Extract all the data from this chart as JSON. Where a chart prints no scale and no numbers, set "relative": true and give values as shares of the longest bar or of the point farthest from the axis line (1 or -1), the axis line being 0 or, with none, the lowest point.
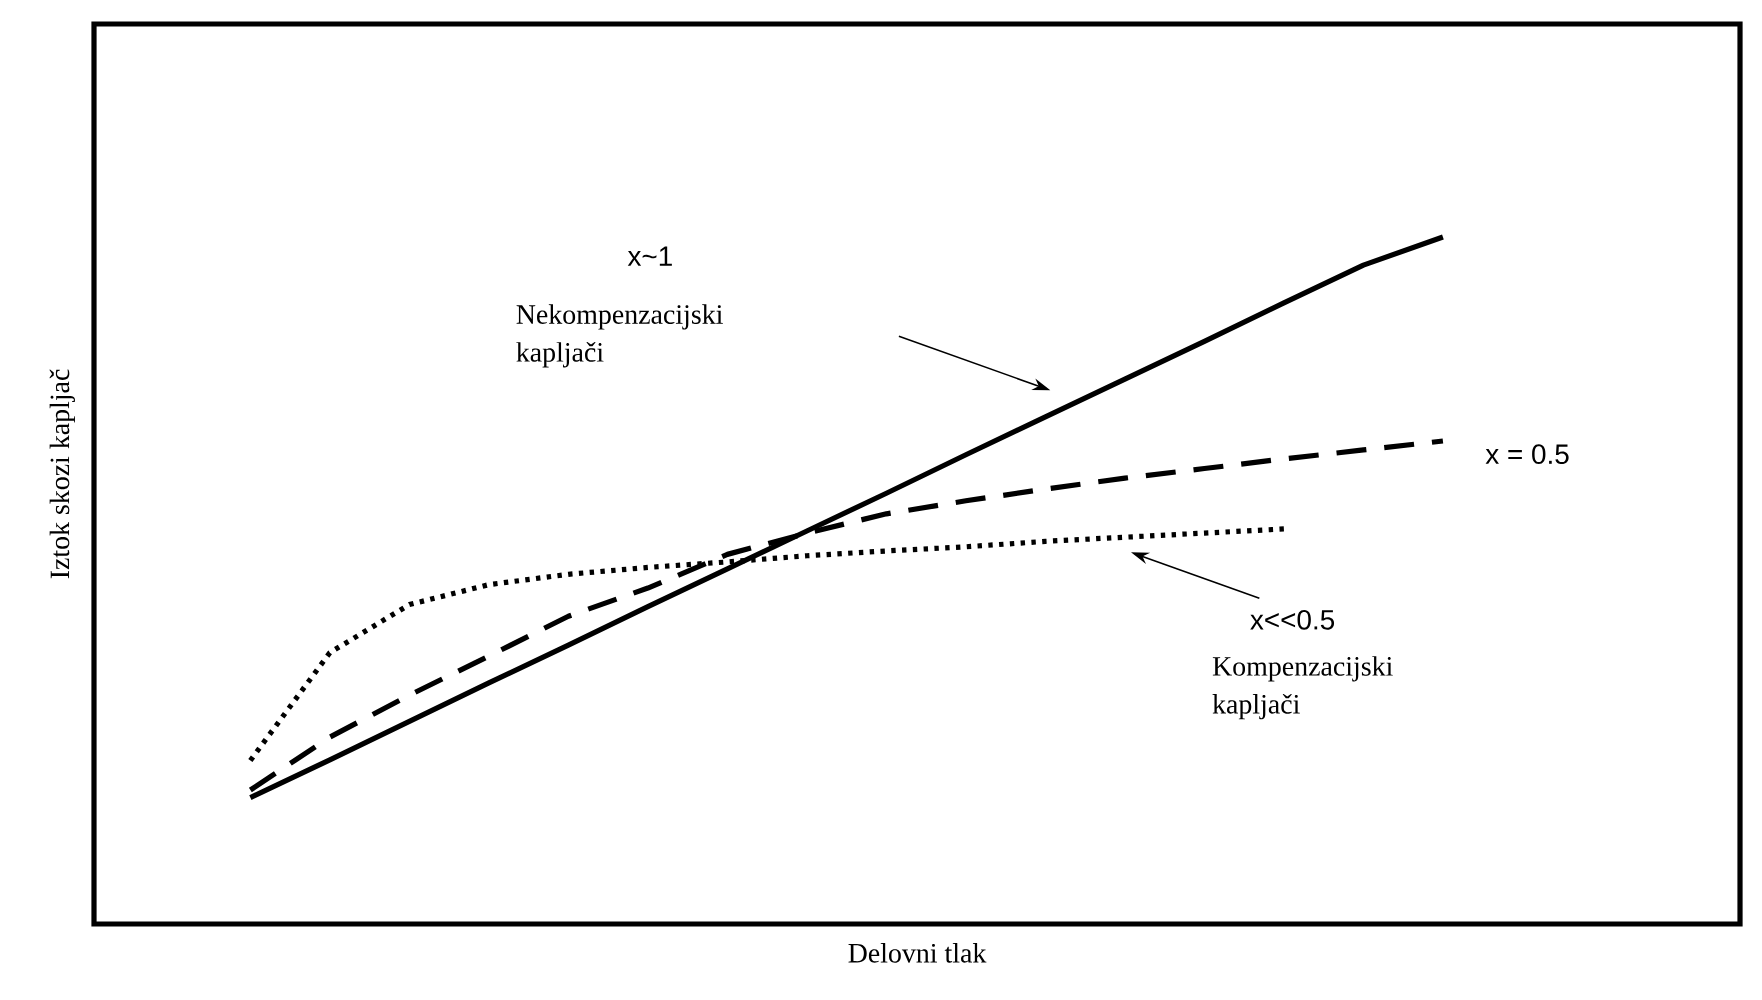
{
  "chart_data": {
    "type": "line",
    "relative": true,
    "xlabel": "Delovni tlak",
    "ylabel": "Iztok skozi kapljač",
    "tick_labels": false,
    "marker": "none",
    "categories": [
      null,
      null,
      null,
      null,
      null,
      null,
      null,
      null,
      null,
      null,
      null,
      null,
      null,
      null,
      null,
      null
    ],
    "series": [
      {
        "values": [
          0.184,
          0.239,
          0.295,
          0.351,
          0.406,
          0.462,
          0.517,
          0.572,
          0.627,
          0.683,
          0.738,
          0.793,
          0.848,
          0.904,
          0.959,
          1
        ],
        "color": "#000000",
        "line_style": "solid"
      },
      {
        "values": [
          0.195,
          0.272,
          0.333,
          0.39,
          0.448,
          0.489,
          0.538,
          0.569,
          0.597,
          0.616,
          0.633,
          0.649,
          0.663,
          0.677,
          0.69,
          0.703
        ],
        "color": "#000000",
        "line_style": "dashed"
      },
      {
        "values": [
          0.238,
          0.395,
          0.465,
          0.494,
          0.509,
          0.519,
          0.527,
          0.536,
          0.543,
          0.549,
          0.557,
          0.563,
          0.569,
          0.575,
          null,
          null
        ],
        "color": "#000000",
        "line_style": "dotted"
      }
    ],
    "annotations": [
      "x~1",
      "Nekompenzacijski kapljači",
      "x = 0.5",
      "x<<0.5",
      "Kompenzacijski kapljači"
    ]
  }
}
